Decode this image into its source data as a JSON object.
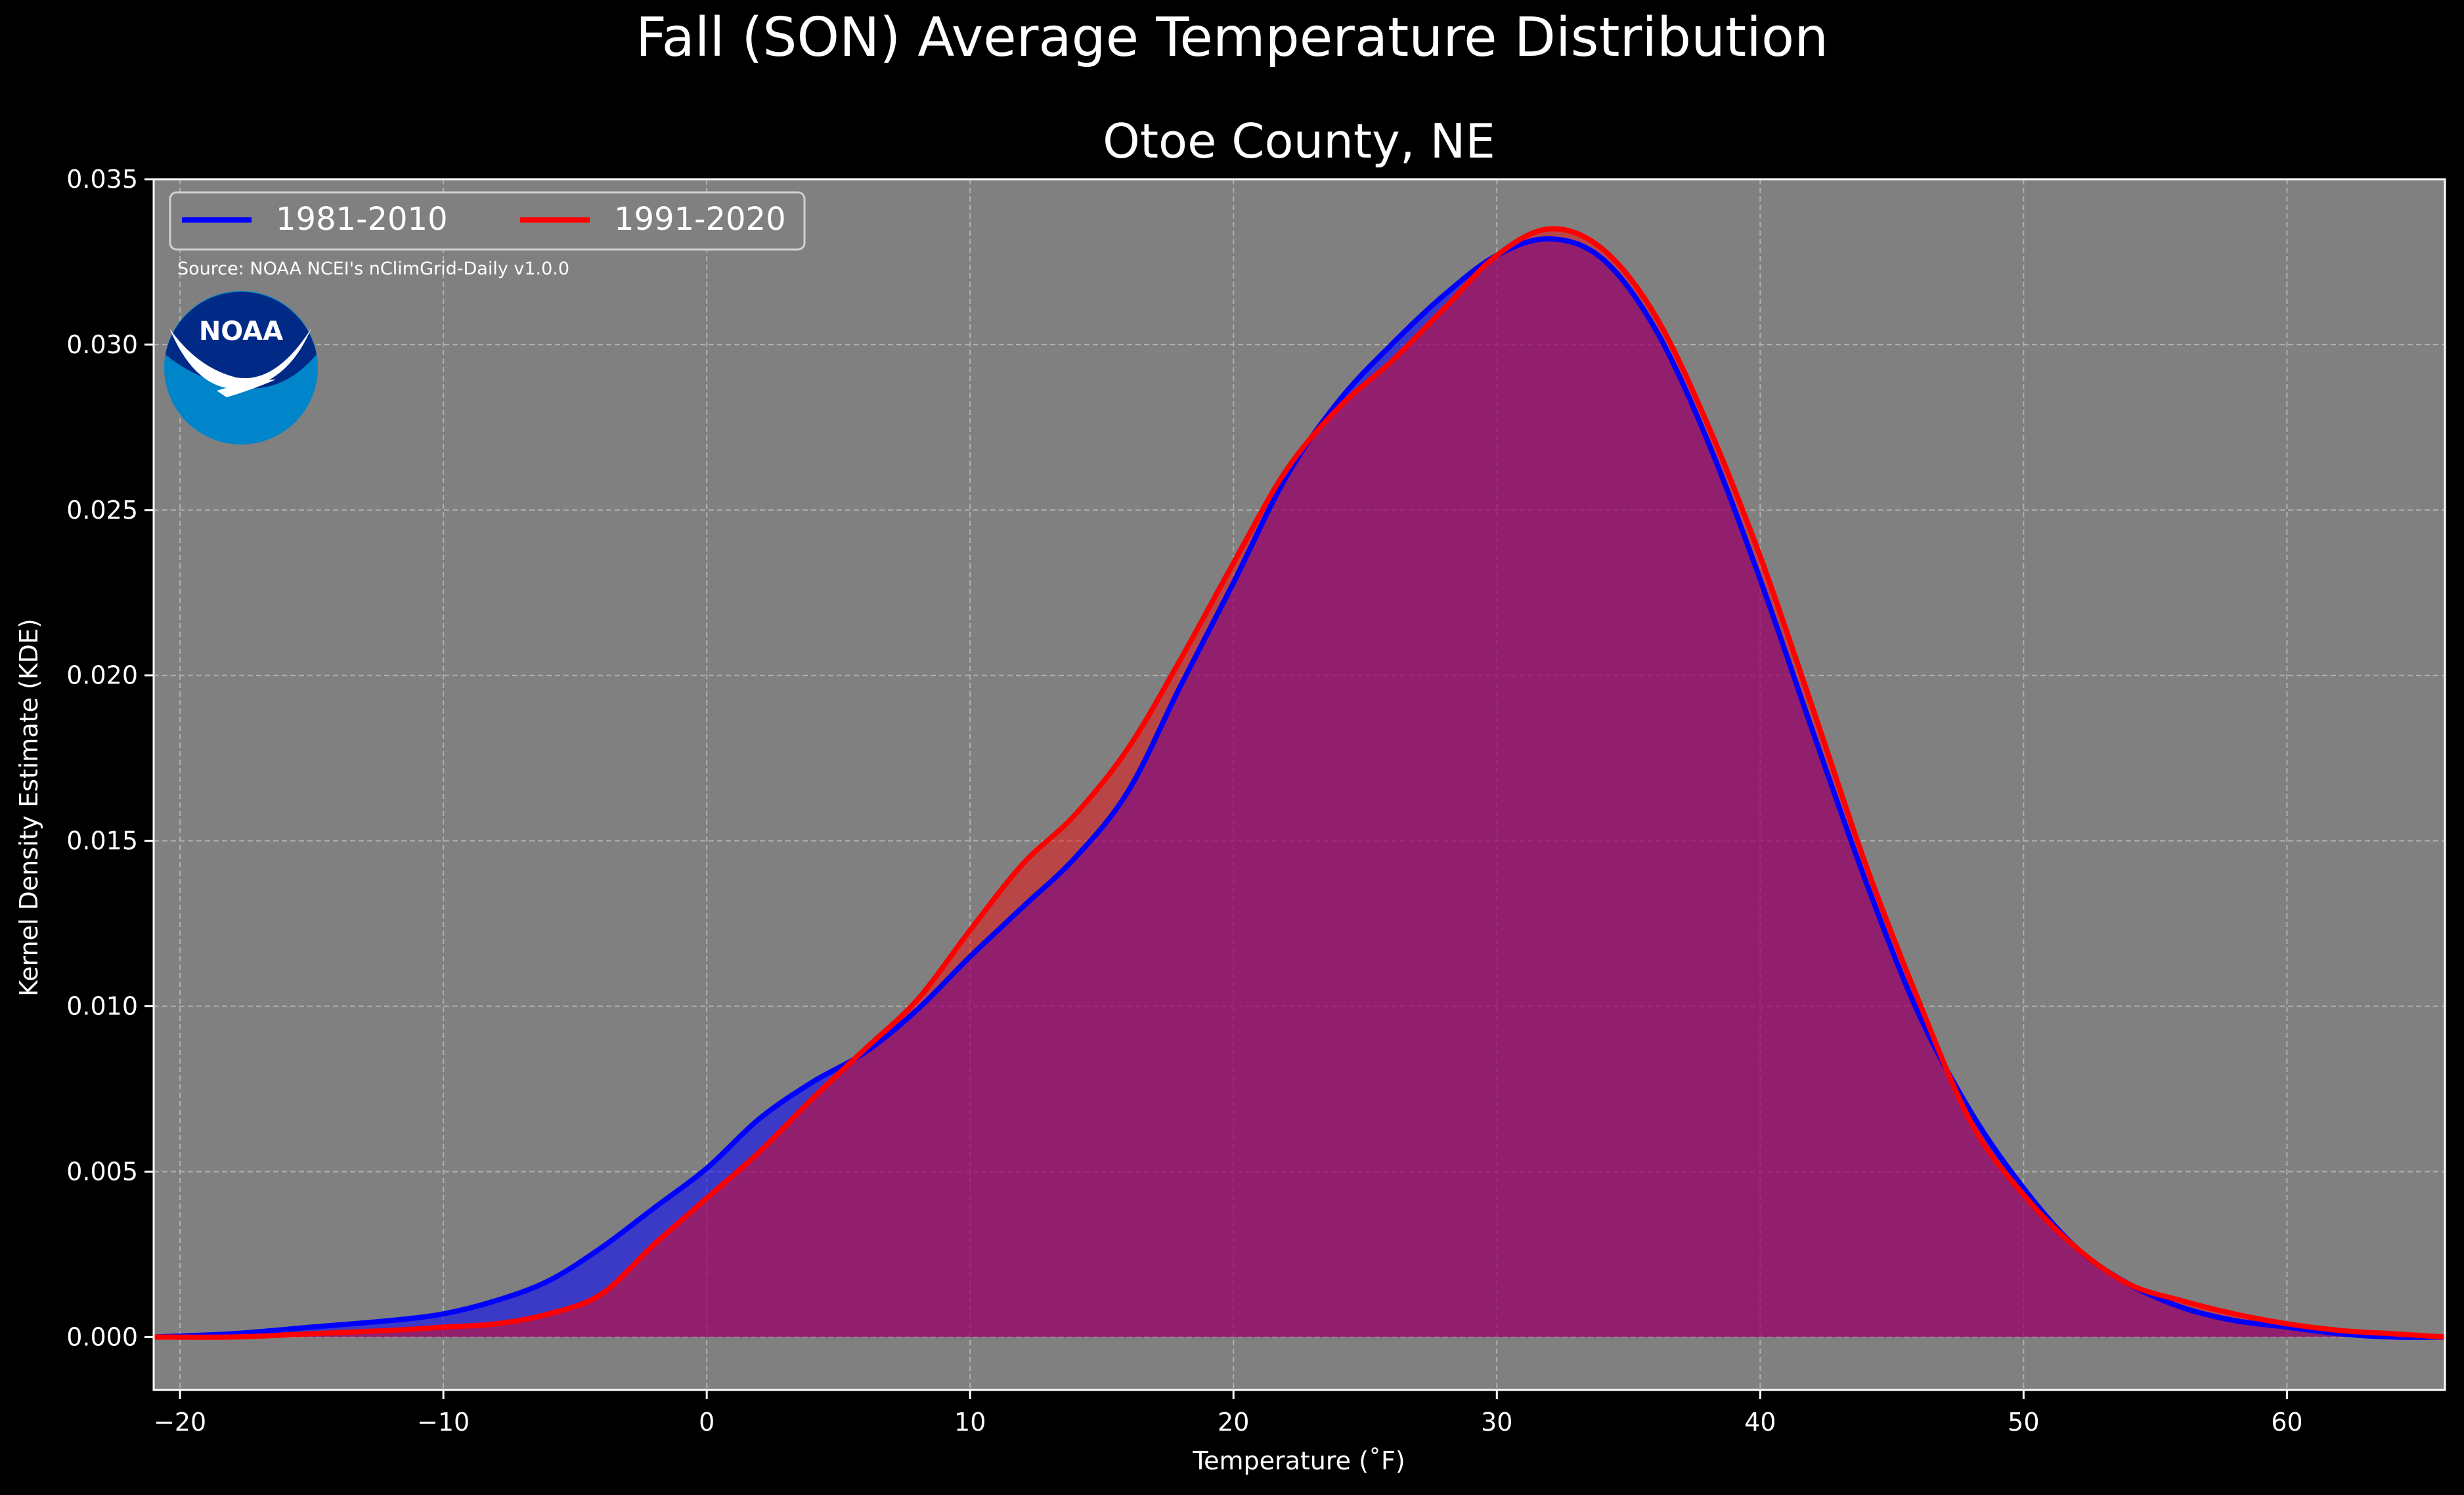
{
  "chart_data": {
    "type": "area",
    "suptitle": "Fall (SON) Average Temperature Distribution",
    "title": "Otoe County, NE",
    "xlabel": "Temperature (˚F)",
    "ylabel": "Kernel Density Estimate (KDE)",
    "xlim": [
      -21,
      66
    ],
    "ylim": [
      -0.0016,
      0.035
    ],
    "xticks": [
      -20,
      -10,
      0,
      10,
      20,
      30,
      40,
      50,
      60
    ],
    "xtick_labels": [
      "−20",
      "−10",
      "0",
      "10",
      "20",
      "30",
      "40",
      "50",
      "60"
    ],
    "yticks": [
      0.0,
      0.005,
      0.01,
      0.015,
      0.02,
      0.025,
      0.03,
      0.035
    ],
    "ytick_labels": [
      "0.000",
      "0.005",
      "0.010",
      "0.015",
      "0.020",
      "0.025",
      "0.030",
      "0.035"
    ],
    "grid": true,
    "legend_position": "top-left",
    "source_note": "Source: NOAA NCEI's nClimGrid-Daily v1.0.0",
    "logo_text": "NOAA",
    "colors": {
      "figure_bg": "#000000",
      "axes_bg": "#808080",
      "text": "#ffffff",
      "series_1981": "#0000ff",
      "series_1991": "#ff0000",
      "logo_dark": "#002a86",
      "logo_light": "#0085ca"
    },
    "series": [
      {
        "name": "1981-2010",
        "color": "#0000ff",
        "x": [
          -21,
          -18,
          -15,
          -12,
          -10,
          -8,
          -6,
          -4,
          -2,
          0,
          2,
          4,
          6,
          8,
          10,
          12,
          14,
          16,
          18,
          20,
          22,
          24,
          26,
          28,
          30,
          32,
          34,
          36,
          38,
          40,
          42,
          44,
          46,
          48,
          50,
          52,
          54,
          56,
          58,
          60,
          62,
          64,
          66
        ],
        "y": [
          0.0,
          0.0001,
          0.0003,
          0.0005,
          0.0007,
          0.0011,
          0.0017,
          0.0027,
          0.0039,
          0.0051,
          0.0066,
          0.0077,
          0.0086,
          0.0099,
          0.0115,
          0.013,
          0.0145,
          0.0165,
          0.0197,
          0.0228,
          0.026,
          0.0283,
          0.03,
          0.0315,
          0.0327,
          0.0332,
          0.0326,
          0.0305,
          0.0271,
          0.0229,
          0.0183,
          0.0138,
          0.0098,
          0.0068,
          0.0045,
          0.0027,
          0.0016,
          0.0009,
          0.0005,
          0.0003,
          0.0001,
          0.0,
          0.0
        ]
      },
      {
        "name": "1991-2020",
        "color": "#ff0000",
        "x": [
          -21,
          -18,
          -15,
          -12,
          -10,
          -8,
          -6,
          -4,
          -2,
          0,
          2,
          4,
          6,
          8,
          10,
          12,
          14,
          16,
          18,
          20,
          22,
          24,
          26,
          28,
          30,
          32,
          34,
          36,
          38,
          40,
          42,
          44,
          46,
          48,
          50,
          52,
          54,
          56,
          58,
          60,
          62,
          64,
          66
        ],
        "y": [
          0.0,
          0.0,
          0.0001,
          0.0002,
          0.0003,
          0.0004,
          0.0007,
          0.0013,
          0.0028,
          0.0042,
          0.0056,
          0.0072,
          0.0087,
          0.0102,
          0.0123,
          0.0143,
          0.0158,
          0.0178,
          0.0205,
          0.0234,
          0.0262,
          0.0281,
          0.0295,
          0.0311,
          0.0327,
          0.0335,
          0.0329,
          0.0309,
          0.0276,
          0.0236,
          0.019,
          0.0143,
          0.0102,
          0.0065,
          0.0043,
          0.0027,
          0.0016,
          0.0011,
          0.0007,
          0.0004,
          0.0002,
          0.0001,
          0.0
        ]
      }
    ]
  }
}
